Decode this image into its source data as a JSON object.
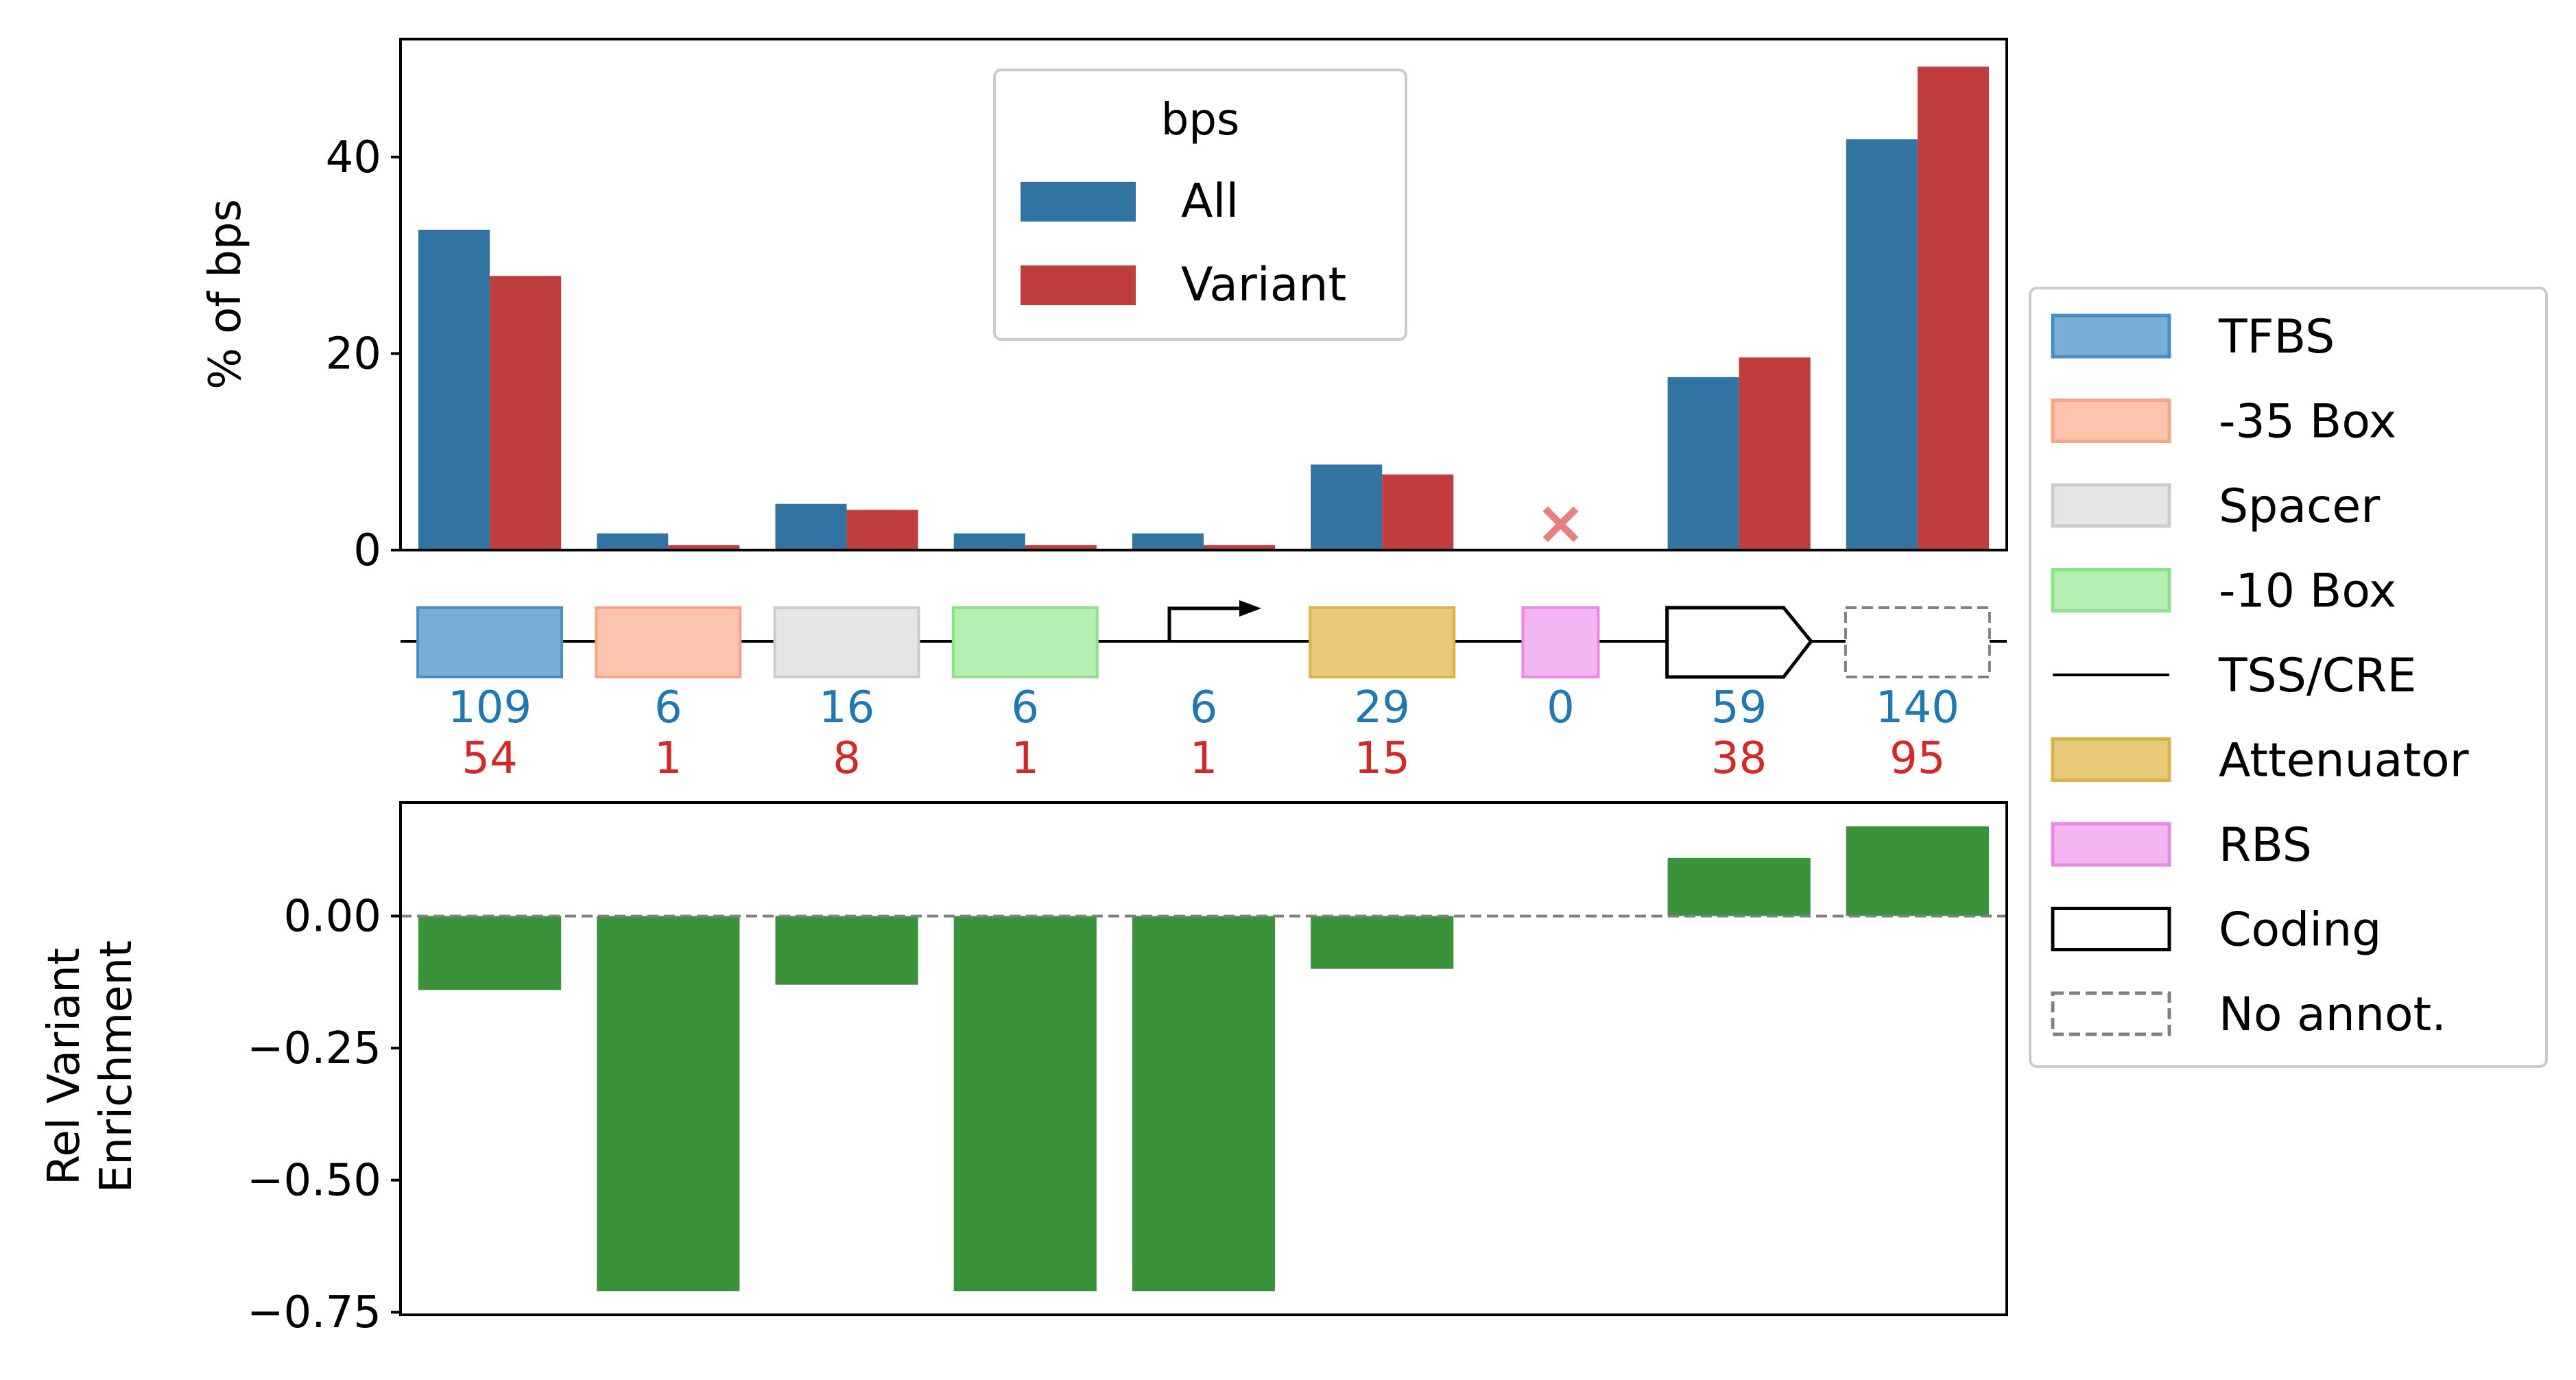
{
  "colors": {
    "all": "#3274a1",
    "variant": "#c03d3e",
    "enrichment": "#3a923a",
    "count_all": "#1f77b4",
    "count_variant": "#d62728",
    "missing_marker": "#e88080"
  },
  "chart_data": [
    {
      "type": "bar",
      "ylabel": "% of bps",
      "ylim": [
        0,
        52
      ],
      "yticks": [
        "0",
        "20",
        "40"
      ],
      "categories": [
        "TFBS",
        "-35 Box",
        "Spacer",
        "-10 Box",
        "TSS/CRE",
        "Attenuator",
        "RBS",
        "Coding",
        "No annot."
      ],
      "series": [
        {
          "name": "All",
          "values": [
            32.6,
            1.7,
            4.7,
            1.7,
            1.7,
            8.7,
            null,
            17.6,
            41.8
          ]
        },
        {
          "name": "Variant",
          "values": [
            27.9,
            0.5,
            4.1,
            0.5,
            0.5,
            7.7,
            null,
            19.6,
            49.2
          ]
        }
      ],
      "missing_marker": "×",
      "legend": {
        "title": "bps",
        "placement": "top-center"
      }
    },
    {
      "type": "bar",
      "ylabel": "Rel Variant\nEnrichment",
      "ylim": [
        -0.755,
        0.215
      ],
      "yticks": [
        "0.00",
        "−0.25",
        "−0.50",
        "−0.75"
      ],
      "categories": [
        "TFBS",
        "-35 Box",
        "Spacer",
        "-10 Box",
        "TSS/CRE",
        "Attenuator",
        "RBS",
        "Coding",
        "No annot."
      ],
      "series": [
        {
          "values": [
            -0.14,
            -0.71,
            -0.13,
            -0.71,
            -0.71,
            -0.1,
            null,
            0.11,
            0.17
          ]
        }
      ],
      "zero_line": "dashed"
    }
  ],
  "annotation_track": {
    "elements": [
      {
        "label": "TFBS",
        "shape": "box",
        "fill": "#7aadd5",
        "stroke": "#4a8cc4",
        "count_all": "109",
        "count_variant": "54"
      },
      {
        "label": "-35 Box",
        "shape": "box",
        "fill": "#fcc3ad",
        "stroke": "#f7a487",
        "count_all": "6",
        "count_variant": "1"
      },
      {
        "label": "Spacer",
        "shape": "box",
        "fill": "#e5e5e5",
        "stroke": "#cccccc",
        "count_all": "16",
        "count_variant": "8"
      },
      {
        "label": "-10 Box",
        "shape": "box",
        "fill": "#b5f0b2",
        "stroke": "#8fe08a",
        "count_all": "6",
        "count_variant": "1"
      },
      {
        "label": "TSS/CRE",
        "shape": "arrow",
        "fill": "none",
        "stroke": "#000000",
        "count_all": "6",
        "count_variant": "1"
      },
      {
        "label": "Attenuator",
        "shape": "box",
        "fill": "#e9c97a",
        "stroke": "#dbb14a",
        "count_all": "29",
        "count_variant": "15"
      },
      {
        "label": "RBS",
        "shape": "box",
        "fill": "#f4b6f2",
        "stroke": "#e88ae5",
        "count_all": "0",
        "count_variant": ""
      },
      {
        "label": "Coding",
        "shape": "gene",
        "fill": "#ffffff",
        "stroke": "#000000",
        "count_all": "59",
        "count_variant": "38"
      },
      {
        "label": "No annot.",
        "shape": "dashed",
        "fill": "#ffffff",
        "stroke": "#808080",
        "count_all": "140",
        "count_variant": "95"
      }
    ]
  },
  "legend": {
    "items": [
      {
        "label": "TFBS",
        "kind": "patch",
        "fill": "#7aadd5",
        "stroke": "#4a8cc4"
      },
      {
        "label": "-35 Box",
        "kind": "patch",
        "fill": "#fcc3ad",
        "stroke": "#f7a487"
      },
      {
        "label": "Spacer",
        "kind": "patch",
        "fill": "#e5e5e5",
        "stroke": "#cccccc"
      },
      {
        "label": "-10 Box",
        "kind": "patch",
        "fill": "#b5f0b2",
        "stroke": "#8fe08a"
      },
      {
        "label": "TSS/CRE",
        "kind": "line",
        "fill": "none",
        "stroke": "#000000"
      },
      {
        "label": "Attenuator",
        "kind": "patch",
        "fill": "#e9c97a",
        "stroke": "#dbb14a"
      },
      {
        "label": "RBS",
        "kind": "patch",
        "fill": "#f4b6f2",
        "stroke": "#e88ae5"
      },
      {
        "label": "Coding",
        "kind": "patch",
        "fill": "#ffffff",
        "stroke": "#000000"
      },
      {
        "label": "No annot.",
        "kind": "dashed",
        "fill": "#ffffff",
        "stroke": "#808080"
      }
    ]
  }
}
